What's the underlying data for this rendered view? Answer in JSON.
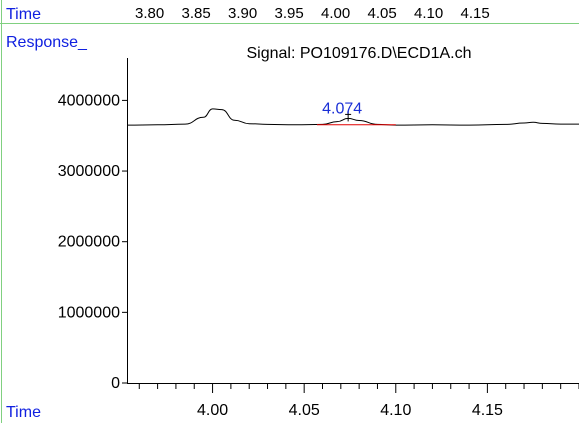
{
  "header": {
    "time_label": "Time",
    "top_ticks": [
      "3.80",
      "3.85",
      "3.90",
      "3.95",
      "4.00",
      "4.05",
      "4.10",
      "4.15"
    ],
    "response_label": "Response_",
    "signal_title": "Signal: PO109176.D\\ECD1A.ch"
  },
  "footer": {
    "time_label": "Time"
  },
  "colors": {
    "frame": "#80d080",
    "label_blue": "#1020e0",
    "trace": "#000000",
    "baseline": "#e00000",
    "peak_label": "#1a2fd6"
  },
  "chart_data": {
    "type": "line",
    "title": "Signal: PO109176.D\\ECD1A.ch",
    "xlabel": "Time",
    "ylabel": "Response_",
    "xlim": [
      3.9533,
      4.2
    ],
    "ylim": [
      0,
      4600000
    ],
    "x_ticks": [
      "4.00",
      "4.05",
      "4.10",
      "4.15"
    ],
    "x_tick_values": [
      4.0,
      4.05,
      4.1,
      4.15
    ],
    "y_ticks": [
      "0",
      "1000000",
      "2000000",
      "3000000",
      "4000000"
    ],
    "y_tick_values": [
      0,
      1000000,
      2000000,
      3000000,
      4000000
    ],
    "series": [
      {
        "values_x": [
          3.9533,
          3.97,
          3.985,
          3.995,
          4.0,
          4.005,
          4.012,
          4.02,
          4.03,
          4.045,
          4.06,
          4.068,
          4.074,
          4.08,
          4.09,
          4.1,
          4.12,
          4.14,
          4.16,
          4.17,
          4.175,
          4.18,
          4.19,
          4.2
        ],
        "values_y": [
          3650000,
          3655000,
          3665000,
          3760000,
          3880000,
          3870000,
          3720000,
          3670000,
          3660000,
          3655000,
          3660000,
          3700000,
          3745000,
          3715000,
          3660000,
          3650000,
          3655000,
          3650000,
          3660000,
          3680000,
          3690000,
          3675000,
          3665000,
          3665000
        ]
      }
    ],
    "peaks": [
      {
        "label": "4.074",
        "x": 4.074,
        "y": 3745000,
        "baseline_start": 4.057,
        "baseline_end": 4.1
      }
    ]
  }
}
